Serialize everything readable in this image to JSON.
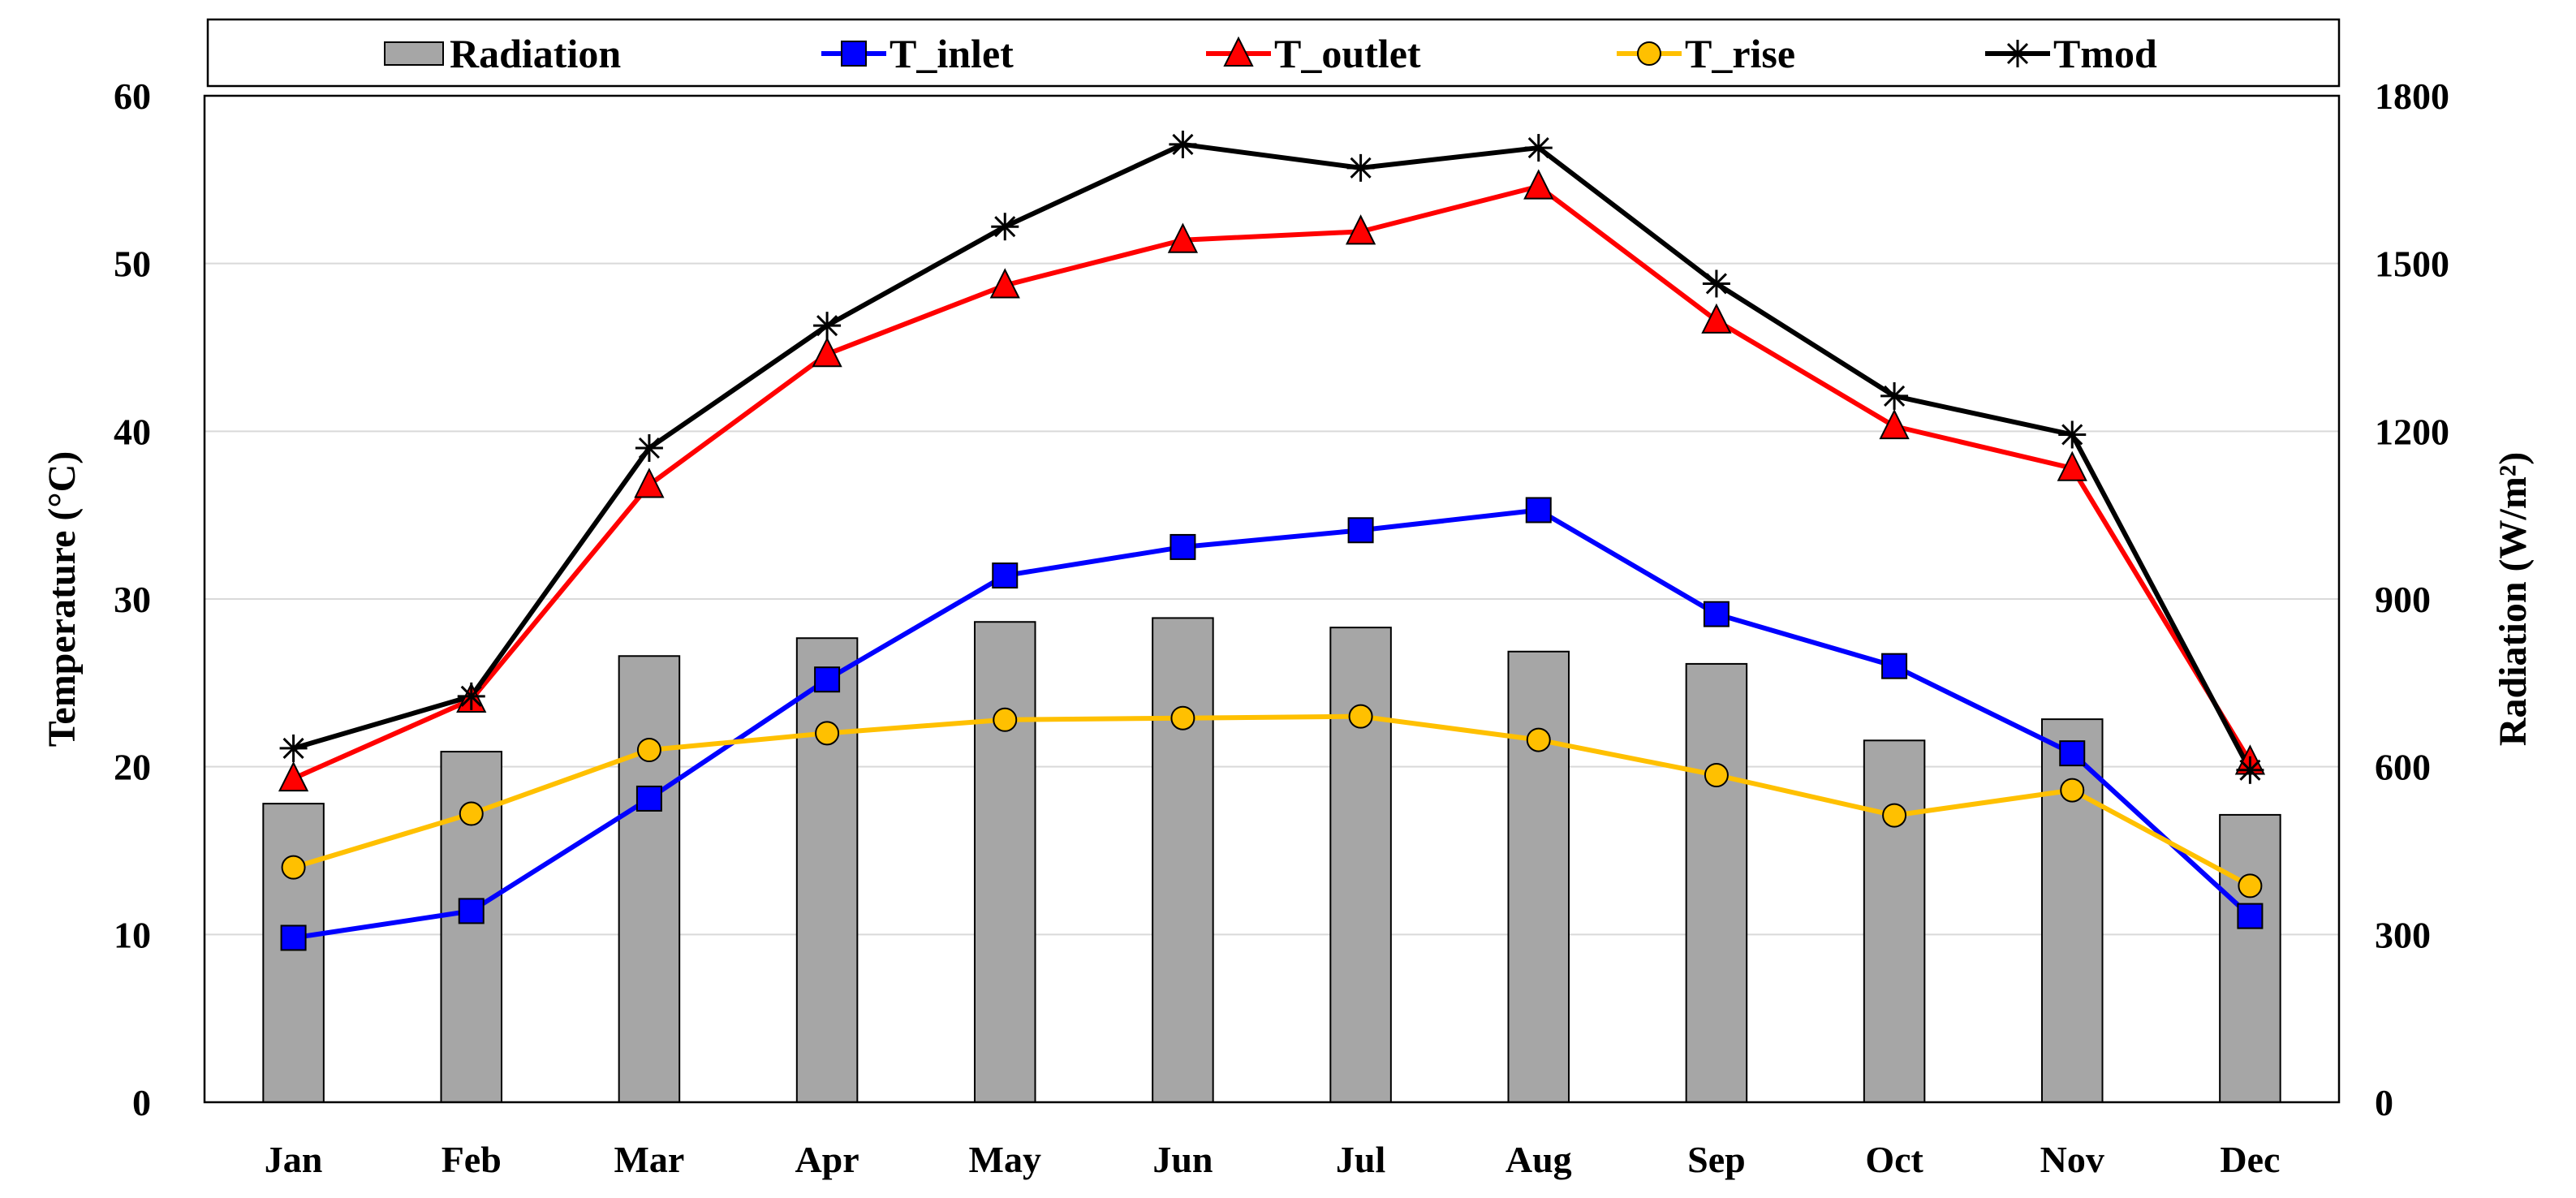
{
  "chart_data": {
    "type": "bar+line",
    "categories": [
      "Jan",
      "Feb",
      "Mar",
      "Apr",
      "May",
      "Jun",
      "Jul",
      "Aug",
      "Sep",
      "Oct",
      "Nov",
      "Dec"
    ],
    "bar_series": {
      "name": "Radiation",
      "axis": "right",
      "color": "#a6a6a6",
      "values": [
        534,
        627,
        798,
        830,
        859,
        866,
        849,
        806,
        784,
        647,
        685,
        514
      ]
    },
    "line_series": [
      {
        "name": "T_inlet",
        "marker": "square",
        "color": "#0000ff",
        "values": [
          9.8,
          11.4,
          18.1,
          25.2,
          31.4,
          33.1,
          34.1,
          35.3,
          29.1,
          26.0,
          20.8,
          11.1
        ]
      },
      {
        "name": "T_outlet",
        "marker": "triangle",
        "color": "#ff0000",
        "values": [
          19.3,
          24.0,
          36.8,
          44.6,
          48.7,
          51.4,
          51.9,
          54.6,
          46.6,
          40.3,
          37.8,
          20.3
        ]
      },
      {
        "name": "T_rise",
        "marker": "circle",
        "color": "#ffc000",
        "values": [
          14.0,
          17.2,
          21.0,
          22.0,
          22.8,
          22.9,
          23.0,
          21.6,
          19.5,
          17.1,
          18.6,
          12.9
        ]
      },
      {
        "name": "Tmod",
        "marker": "asterisk",
        "color": "#000000",
        "values": [
          21.1,
          24.2,
          39.0,
          46.3,
          52.2,
          57.1,
          55.7,
          56.9,
          48.8,
          42.1,
          39.8,
          19.8
        ]
      }
    ],
    "legend_labels": [
      "Radiation",
      "T_inlet",
      "T_outlet",
      "T_rise",
      "Tmod"
    ],
    "legend_position": "top",
    "ylabel_left": "Temperature (°C)",
    "ylabel_right": "Radiation (W/m²)",
    "ylim_left": [
      0,
      60
    ],
    "ylim_right": [
      0,
      1800
    ],
    "yticks_left": [
      "0",
      "10",
      "20",
      "30",
      "40",
      "50",
      "60"
    ],
    "yticks_right": [
      "0",
      "300",
      "600",
      "900",
      "1200",
      "1500",
      "1800"
    ],
    "grid": true
  }
}
